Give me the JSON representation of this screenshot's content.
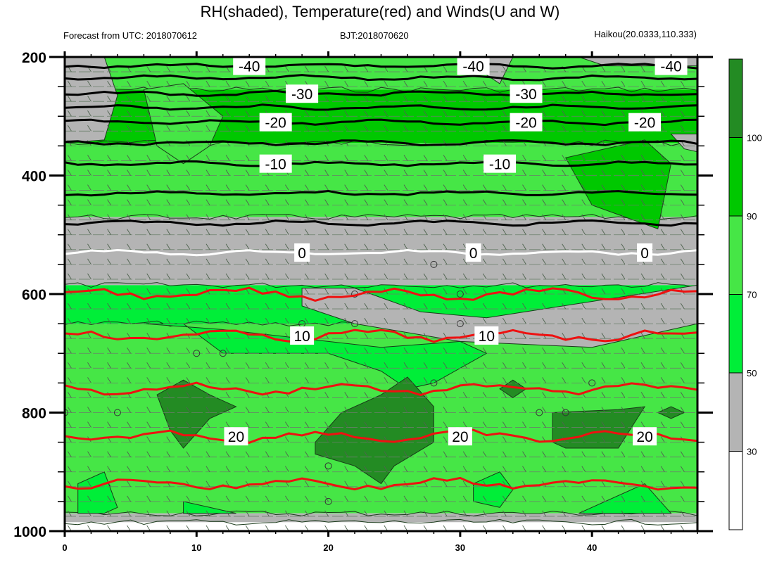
{
  "chart_data": {
    "type": "heatmap",
    "title": "RH(shaded), Temperature(red) and Winds(U and W)",
    "subtitle_left": "Forecast from UTC: 2018070612",
    "subtitle_center": "BJT:2018070620",
    "subtitle_right": "Haikou(20.0333,110.333)",
    "xlabel": "",
    "ylabel": "",
    "xlim": [
      0,
      48
    ],
    "ylim": [
      1000,
      200
    ],
    "x_ticks": [
      "0",
      "10",
      "20",
      "30",
      "40"
    ],
    "y_ticks": [
      "200",
      "400",
      "600",
      "800",
      "1000"
    ],
    "colorbar": {
      "levels": [
        "30",
        "50",
        "70",
        "90",
        "100"
      ],
      "colors": [
        "#ffffff",
        "#b4b4b4",
        "#00ee38",
        "#46e646",
        "#00c800",
        "#238b23"
      ]
    },
    "rh_bands": [
      {
        "p_top": 200,
        "p_bottom": 255,
        "class": 3
      },
      {
        "p_top": 255,
        "p_bottom": 345,
        "class": 4
      },
      {
        "p_top": 345,
        "p_bottom": 470,
        "class": 3
      },
      {
        "p_top": 470,
        "p_bottom": 585,
        "class": 1
      },
      {
        "p_top": 585,
        "p_bottom": 650,
        "class": 2
      },
      {
        "p_top": 650,
        "p_bottom": 970,
        "class": 3
      },
      {
        "p_top": 970,
        "p_bottom": 985,
        "class": 1
      },
      {
        "p_top": 985,
        "p_bottom": 1000,
        "class": 0
      }
    ],
    "rh_patches": [
      {
        "points": [
          [
            0,
            200
          ],
          [
            3,
            200
          ],
          [
            4,
            265
          ],
          [
            3,
            340
          ],
          [
            0,
            345
          ]
        ],
        "class": 1
      },
      {
        "points": [
          [
            32,
            200
          ],
          [
            34,
            200
          ],
          [
            33,
            245
          ],
          [
            32,
            230
          ]
        ],
        "class": 1
      },
      {
        "points": [
          [
            39,
            200
          ],
          [
            48,
            200
          ],
          [
            48,
            215
          ],
          [
            41,
            215
          ]
        ],
        "class": 1
      },
      {
        "points": [
          [
            46,
            330
          ],
          [
            48,
            330
          ],
          [
            48,
            360
          ],
          [
            47,
            355
          ]
        ],
        "class": 1
      },
      {
        "points": [
          [
            6,
            255
          ],
          [
            9,
            245
          ],
          [
            12,
            300
          ],
          [
            11,
            350
          ],
          [
            9,
            380
          ],
          [
            7,
            350
          ]
        ],
        "class": 3
      },
      {
        "points": [
          [
            38,
            370
          ],
          [
            44,
            340
          ],
          [
            46,
            380
          ],
          [
            45,
            490
          ],
          [
            40,
            450
          ]
        ],
        "class": 4
      },
      {
        "points": [
          [
            18,
            590
          ],
          [
            22,
            590
          ],
          [
            27,
            630
          ],
          [
            32,
            640
          ],
          [
            48,
            585
          ],
          [
            48,
            650
          ],
          [
            40,
            690
          ],
          [
            30,
            680
          ],
          [
            22,
            650
          ],
          [
            18,
            620
          ]
        ],
        "class": 1
      },
      {
        "points": [
          [
            6,
            650
          ],
          [
            9,
            650
          ],
          [
            12,
            700
          ],
          [
            20,
            700
          ],
          [
            24,
            730
          ],
          [
            26,
            760
          ],
          [
            28,
            750
          ],
          [
            32,
            700
          ],
          [
            30,
            680
          ],
          [
            24,
            690
          ],
          [
            20,
            680
          ],
          [
            12,
            660
          ]
        ],
        "class": 2
      },
      {
        "points": [
          [
            7,
            770
          ],
          [
            9,
            745
          ],
          [
            11,
            770
          ],
          [
            13,
            790
          ],
          [
            11,
            810
          ],
          [
            9,
            860
          ],
          [
            8,
            830
          ]
        ],
        "class": 5
      },
      {
        "points": [
          [
            19,
            850
          ],
          [
            21,
            800
          ],
          [
            24,
            770
          ],
          [
            26,
            740
          ],
          [
            28,
            790
          ],
          [
            28,
            850
          ],
          [
            25,
            890
          ],
          [
            24,
            920
          ],
          [
            22,
            890
          ],
          [
            19,
            870
          ]
        ],
        "class": 5
      },
      {
        "points": [
          [
            33,
            760
          ],
          [
            34,
            745
          ],
          [
            35,
            760
          ],
          [
            34,
            775
          ]
        ],
        "class": 5
      },
      {
        "points": [
          [
            37,
            800
          ],
          [
            42,
            795
          ],
          [
            44,
            790
          ],
          [
            42,
            860
          ],
          [
            38,
            860
          ],
          [
            37,
            850
          ]
        ],
        "class": 5
      },
      {
        "points": [
          [
            45,
            800
          ],
          [
            46,
            790
          ],
          [
            47,
            800
          ],
          [
            46,
            810
          ]
        ],
        "class": 5
      },
      {
        "points": [
          [
            1,
            920
          ],
          [
            3,
            900
          ],
          [
            4,
            960
          ],
          [
            3,
            970
          ],
          [
            1,
            970
          ]
        ],
        "class": 2
      },
      {
        "points": [
          [
            9,
            950
          ],
          [
            11,
            960
          ],
          [
            13,
            970
          ],
          [
            9,
            970
          ]
        ],
        "class": 2
      },
      {
        "points": [
          [
            31,
            920
          ],
          [
            33,
            900
          ],
          [
            34,
            930
          ],
          [
            33,
            960
          ],
          [
            31,
            950
          ]
        ],
        "class": 2
      },
      {
        "points": [
          [
            39,
            970
          ],
          [
            44,
            920
          ],
          [
            46,
            970
          ]
        ],
        "class": 2
      }
    ],
    "isotherms": [
      {
        "value": -40,
        "p": 215,
        "color": "black",
        "labels": [
          14,
          31,
          46
        ]
      },
      {
        "value": -40,
        "p": 235,
        "color": "black",
        "labels": []
      },
      {
        "value": -30,
        "p": 262,
        "color": "black",
        "labels": [
          18,
          35
        ]
      },
      {
        "value": -30,
        "p": 285,
        "color": "black",
        "labels": []
      },
      {
        "value": -20,
        "p": 310,
        "color": "black",
        "labels": [
          16,
          35,
          44
        ]
      },
      {
        "value": -20,
        "p": 345,
        "color": "black",
        "labels": []
      },
      {
        "value": -10,
        "p": 380,
        "color": "black",
        "labels": [
          16,
          33
        ]
      },
      {
        "value": -10,
        "p": 430,
        "color": "black",
        "labels": []
      },
      {
        "value": -10,
        "p": 480,
        "color": "black",
        "labels": []
      },
      {
        "value": 0,
        "p": 530,
        "color": "white",
        "labels": [
          18,
          31,
          44
        ]
      },
      {
        "value": 10,
        "p": 600,
        "color": "red",
        "labels": []
      },
      {
        "value": 10,
        "p": 670,
        "color": "red",
        "labels": [
          18,
          32
        ]
      },
      {
        "value": 20,
        "p": 760,
        "color": "red",
        "labels": []
      },
      {
        "value": 20,
        "p": 840,
        "color": "red",
        "labels": [
          13,
          30,
          44
        ]
      },
      {
        "value": 20,
        "p": 920,
        "color": "red",
        "labels": []
      }
    ],
    "calm_winds": [
      [
        0,
        800
      ],
      [
        4,
        800
      ],
      [
        10,
        700
      ],
      [
        12,
        700
      ],
      [
        18,
        650
      ],
      [
        20,
        890
      ],
      [
        20,
        950
      ],
      [
        22,
        600
      ],
      [
        22,
        650
      ],
      [
        28,
        550
      ],
      [
        28,
        750
      ],
      [
        30,
        600
      ],
      [
        30,
        650
      ],
      [
        36,
        800
      ],
      [
        38,
        800
      ],
      [
        40,
        750
      ]
    ]
  }
}
